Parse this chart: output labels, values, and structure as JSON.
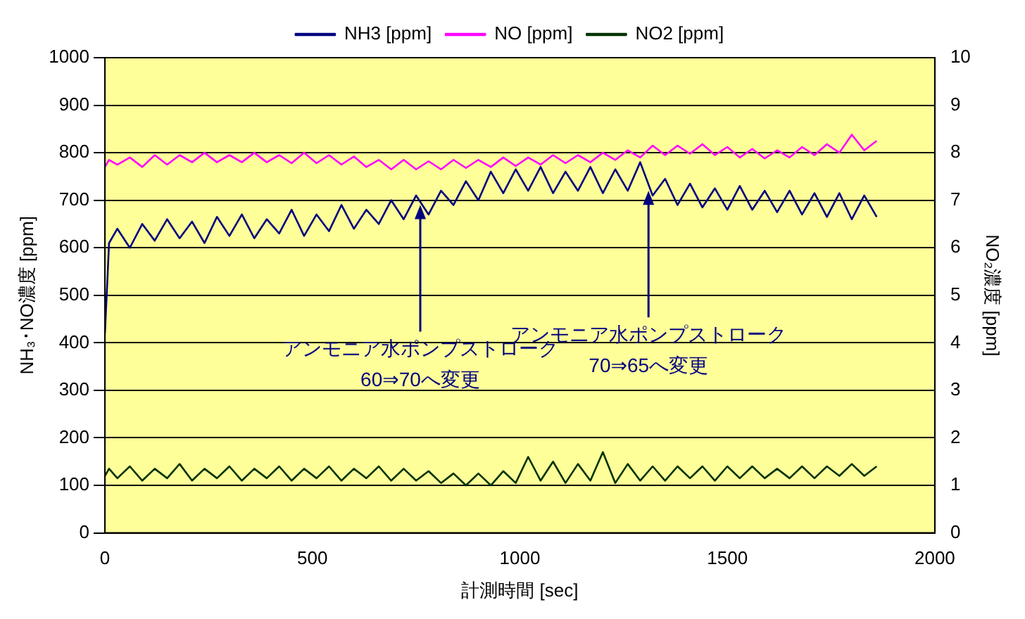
{
  "chart_data": {
    "type": "line",
    "xlabel": "計測時間 [sec]",
    "ylabel": "NH₃･NO濃度 [ppm]",
    "y2label": "NO₂濃度 [ppm]",
    "x": [
      0,
      10,
      30,
      60,
      90,
      120,
      150,
      180,
      210,
      240,
      270,
      300,
      330,
      360,
      390,
      420,
      450,
      480,
      510,
      540,
      570,
      600,
      630,
      660,
      690,
      720,
      750,
      780,
      810,
      840,
      870,
      900,
      930,
      960,
      990,
      1020,
      1050,
      1080,
      1110,
      1140,
      1170,
      1200,
      1230,
      1260,
      1290,
      1320,
      1350,
      1380,
      1410,
      1440,
      1470,
      1500,
      1530,
      1560,
      1590,
      1620,
      1650,
      1680,
      1710,
      1740,
      1770,
      1800,
      1830,
      1860
    ],
    "series": [
      {
        "name": "NH3 [ppm]",
        "color": "#000080",
        "values": [
          420,
          610,
          640,
          600,
          650,
          615,
          660,
          620,
          655,
          610,
          665,
          625,
          670,
          620,
          660,
          630,
          680,
          625,
          670,
          635,
          690,
          640,
          680,
          650,
          700,
          660,
          710,
          670,
          720,
          690,
          740,
          700,
          760,
          715,
          765,
          720,
          770,
          715,
          760,
          720,
          770,
          715,
          765,
          720,
          780,
          710,
          745,
          690,
          735,
          685,
          725,
          680,
          730,
          680,
          720,
          675,
          720,
          670,
          715,
          665,
          715,
          660,
          710,
          665
        ]
      },
      {
        "name": "NO [ppm]",
        "color": "#ff00ff",
        "values": [
          770,
          785,
          775,
          790,
          770,
          795,
          775,
          795,
          780,
          800,
          780,
          795,
          780,
          800,
          780,
          795,
          778,
          800,
          778,
          795,
          775,
          792,
          770,
          785,
          765,
          785,
          765,
          782,
          765,
          785,
          768,
          785,
          770,
          790,
          772,
          790,
          775,
          795,
          778,
          795,
          780,
          800,
          785,
          805,
          790,
          815,
          795,
          815,
          798,
          818,
          795,
          812,
          790,
          808,
          788,
          805,
          790,
          812,
          795,
          818,
          800,
          838,
          805,
          825
        ]
      },
      {
        "name": "NO2 [ppm]",
        "color": "#003300",
        "axis": "y2",
        "values": [
          1.2,
          1.35,
          1.15,
          1.4,
          1.1,
          1.35,
          1.15,
          1.45,
          1.1,
          1.35,
          1.15,
          1.4,
          1.1,
          1.35,
          1.15,
          1.4,
          1.1,
          1.35,
          1.15,
          1.4,
          1.1,
          1.35,
          1.15,
          1.4,
          1.1,
          1.35,
          1.1,
          1.3,
          1.05,
          1.25,
          1.0,
          1.25,
          1.0,
          1.3,
          1.05,
          1.6,
          1.1,
          1.5,
          1.05,
          1.45,
          1.1,
          1.7,
          1.05,
          1.45,
          1.1,
          1.4,
          1.1,
          1.4,
          1.15,
          1.4,
          1.1,
          1.4,
          1.15,
          1.4,
          1.15,
          1.35,
          1.15,
          1.4,
          1.15,
          1.4,
          1.2,
          1.45,
          1.2,
          1.4
        ]
      }
    ],
    "xlim": [
      0,
      2000
    ],
    "xticks": [
      0,
      500,
      1000,
      1500,
      2000
    ],
    "ylim": [
      0,
      1000
    ],
    "yticks": [
      0,
      100,
      200,
      300,
      400,
      500,
      600,
      700,
      800,
      900,
      1000
    ],
    "y2lim": [
      0,
      10
    ],
    "y2ticks": [
      0,
      1,
      2,
      3,
      4,
      5,
      6,
      7,
      8,
      9,
      10
    ],
    "grid": "y",
    "legend": "top",
    "marker": "none",
    "line_style": "solid",
    "annotations": [
      {
        "text": "アンモニア水ポンプストローク\n60⇒70へ変更",
        "x": 760,
        "y": 690
      },
      {
        "text": "アンモニア水ポンプストローク\n70⇒65へ変更",
        "x": 1310,
        "y": 720
      }
    ]
  }
}
